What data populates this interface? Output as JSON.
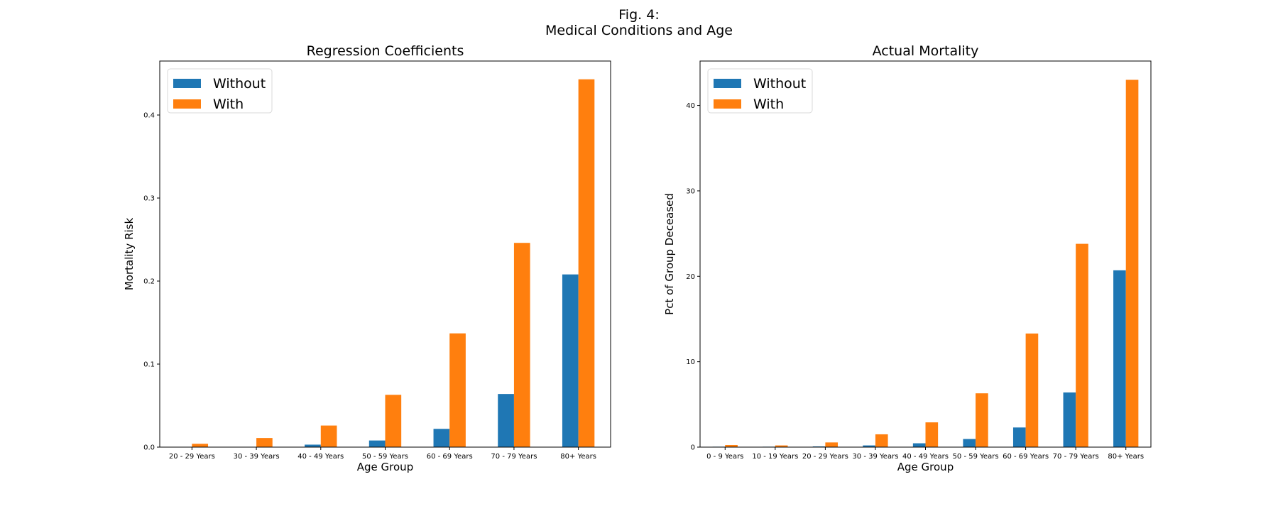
{
  "figure": {
    "title_line1": "Fig. 4:",
    "title_line2": "Medical Conditions and Age"
  },
  "colors": {
    "without": "#1f77b4",
    "with": "#ff7f0e"
  },
  "chart_data": [
    {
      "type": "bar",
      "title": "Regression Coefficients",
      "xlabel": "Age Group",
      "ylabel": "Mortality Risk",
      "categories": [
        "20 - 29 Years",
        "30 - 39 Years",
        "40 - 49 Years",
        "50 - 59 Years",
        "60 - 69 Years",
        "70 - 79 Years",
        "80+ Years"
      ],
      "series": [
        {
          "name": "Without",
          "values": [
            0.0,
            0.0,
            0.003,
            0.008,
            0.022,
            0.064,
            0.208
          ]
        },
        {
          "name": "With",
          "values": [
            0.004,
            0.011,
            0.026,
            0.063,
            0.137,
            0.246,
            0.443
          ]
        }
      ],
      "ylim": [
        0,
        0.465
      ],
      "yticks": [
        0.0,
        0.1,
        0.2,
        0.3,
        0.4
      ],
      "ytick_labels": [
        "0.0",
        "0.1",
        "0.2",
        "0.3",
        "0.4"
      ],
      "legend": "top-left",
      "grid": false
    },
    {
      "type": "bar",
      "title": "Actual Mortality",
      "xlabel": "Age Group",
      "ylabel": "Pct of Group Deceased",
      "categories": [
        "0 - 9 Years",
        "10 - 19 Years",
        "20 - 29 Years",
        "30 - 39 Years",
        "40 - 49 Years",
        "50 - 59 Years",
        "60 - 69 Years",
        "70 - 79 Years",
        "80+ Years"
      ],
      "series": [
        {
          "name": "Without",
          "values": [
            0.05,
            0.05,
            0.08,
            0.2,
            0.45,
            0.95,
            2.3,
            6.4,
            20.7
          ]
        },
        {
          "name": "With",
          "values": [
            0.25,
            0.2,
            0.55,
            1.5,
            2.9,
            6.3,
            13.3,
            23.8,
            43.0
          ]
        }
      ],
      "ylim": [
        0,
        45.2
      ],
      "yticks": [
        0,
        10,
        20,
        30,
        40
      ],
      "ytick_labels": [
        "0",
        "10",
        "20",
        "30",
        "40"
      ],
      "legend": "top-left",
      "grid": false
    }
  ]
}
